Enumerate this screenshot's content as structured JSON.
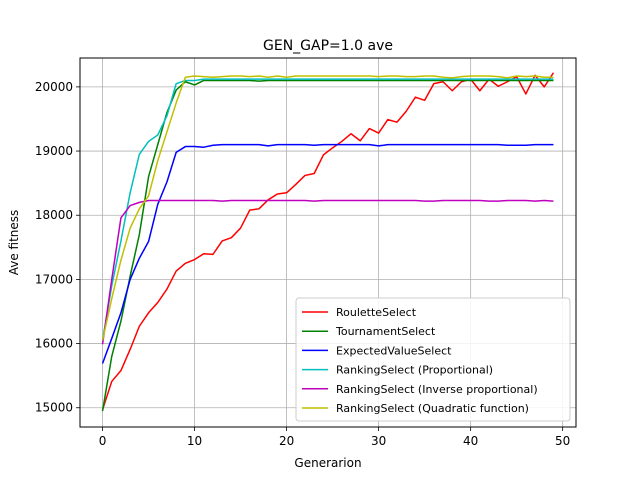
{
  "chart_data": {
    "type": "line",
    "title": "GEN_GAP=1.0 ave",
    "xlabel": "Generarion",
    "ylabel": "Ave fitness",
    "xlim": [
      -2.45,
      51.45
    ],
    "ylim": [
      14700,
      20450
    ],
    "xticks": [
      0,
      10,
      20,
      30,
      40,
      50
    ],
    "yticks": [
      15000,
      16000,
      17000,
      18000,
      19000,
      20000
    ],
    "grid": true,
    "legend_position": "lower-right",
    "series": [
      {
        "name": "RouletteSelect",
        "color": "#ff0000",
        "x": [
          0,
          1,
          2,
          3,
          4,
          5,
          6,
          7,
          8,
          9,
          10,
          11,
          12,
          13,
          14,
          15,
          16,
          17,
          18,
          19,
          20,
          21,
          22,
          23,
          24,
          25,
          26,
          27,
          28,
          29,
          30,
          31,
          32,
          33,
          34,
          35,
          36,
          37,
          38,
          39,
          40,
          41,
          42,
          43,
          44,
          45,
          46,
          47,
          48,
          49
        ],
        "values": [
          14970,
          15410,
          15580,
          15910,
          16270,
          16480,
          16640,
          16850,
          17130,
          17250,
          17310,
          17400,
          17390,
          17600,
          17650,
          17800,
          18080,
          18100,
          18240,
          18330,
          18350,
          18480,
          18620,
          18650,
          18940,
          19050,
          19150,
          19270,
          19160,
          19350,
          19280,
          19490,
          19450,
          19620,
          19840,
          19790,
          20050,
          20080,
          19940,
          20080,
          20120,
          19940,
          20120,
          20010,
          20080,
          20160,
          19890,
          20180,
          20000,
          20220
        ]
      },
      {
        "name": "TournamentSelect",
        "color": "#008000",
        "x": [
          0,
          1,
          2,
          3,
          4,
          5,
          6,
          7,
          8,
          9,
          10,
          11,
          12,
          13,
          14,
          15,
          16,
          17,
          18,
          19,
          20,
          21,
          22,
          23,
          24,
          25,
          26,
          27,
          28,
          29,
          30,
          31,
          32,
          33,
          34,
          35,
          36,
          37,
          38,
          39,
          40,
          41,
          42,
          43,
          44,
          45,
          46,
          47,
          48,
          49
        ],
        "values": [
          14950,
          15800,
          16350,
          17050,
          17700,
          18600,
          19100,
          19600,
          19950,
          20080,
          20030,
          20100,
          20100,
          20100,
          20100,
          20100,
          20100,
          20090,
          20100,
          20100,
          20100,
          20100,
          20100,
          20100,
          20100,
          20100,
          20100,
          20100,
          20100,
          20100,
          20100,
          20100,
          20100,
          20100,
          20100,
          20100,
          20100,
          20100,
          20100,
          20100,
          20100,
          20100,
          20100,
          20100,
          20100,
          20100,
          20100,
          20100,
          20100,
          20100
        ]
      },
      {
        "name": "ExpectedValueSelect",
        "color": "#0000ff",
        "x": [
          0,
          1,
          2,
          3,
          4,
          5,
          6,
          7,
          8,
          9,
          10,
          11,
          12,
          13,
          14,
          15,
          16,
          17,
          18,
          19,
          20,
          21,
          22,
          23,
          24,
          25,
          26,
          27,
          28,
          29,
          30,
          31,
          32,
          33,
          34,
          35,
          36,
          37,
          38,
          39,
          40,
          41,
          42,
          43,
          44,
          45,
          46,
          47,
          48,
          49
        ],
        "values": [
          15690,
          16080,
          16480,
          17000,
          17330,
          17590,
          18170,
          18520,
          18980,
          19070,
          19070,
          19060,
          19090,
          19100,
          19100,
          19100,
          19100,
          19100,
          19080,
          19100,
          19100,
          19100,
          19100,
          19090,
          19100,
          19100,
          19100,
          19100,
          19100,
          19100,
          19080,
          19100,
          19100,
          19100,
          19100,
          19100,
          19100,
          19100,
          19100,
          19100,
          19100,
          19100,
          19100,
          19100,
          19090,
          19090,
          19090,
          19100,
          19100,
          19100
        ]
      },
      {
        "name": "RankingSelect (Proportional)",
        "color": "#00bfbf",
        "x": [
          0,
          1,
          2,
          3,
          4,
          5,
          6,
          7,
          8,
          9,
          10,
          11,
          12,
          13,
          14,
          15,
          16,
          17,
          18,
          19,
          20,
          21,
          22,
          23,
          24,
          25,
          26,
          27,
          28,
          29,
          30,
          31,
          32,
          33,
          34,
          35,
          36,
          37,
          38,
          39,
          40,
          41,
          42,
          43,
          44,
          45,
          46,
          47,
          48,
          49
        ],
        "values": [
          16050,
          16900,
          17600,
          18350,
          18950,
          19150,
          19250,
          19550,
          20050,
          20100,
          20100,
          20120,
          20120,
          20120,
          20120,
          20120,
          20120,
          20120,
          20120,
          20120,
          20120,
          20120,
          20120,
          20120,
          20120,
          20120,
          20120,
          20120,
          20120,
          20120,
          20120,
          20120,
          20120,
          20120,
          20120,
          20120,
          20120,
          20120,
          20120,
          20120,
          20120,
          20120,
          20120,
          20120,
          20120,
          20120,
          20120,
          20120,
          20120,
          20120
        ]
      },
      {
        "name": "RankingSelect (Inverse proportional)",
        "color": "#bf00bf",
        "x": [
          0,
          1,
          2,
          3,
          4,
          5,
          6,
          7,
          8,
          9,
          10,
          11,
          12,
          13,
          14,
          15,
          16,
          17,
          18,
          19,
          20,
          21,
          22,
          23,
          24,
          25,
          26,
          27,
          28,
          29,
          30,
          31,
          32,
          33,
          34,
          35,
          36,
          37,
          38,
          39,
          40,
          41,
          42,
          43,
          44,
          45,
          46,
          47,
          48,
          49
        ],
        "values": [
          15990,
          17000,
          17960,
          18150,
          18200,
          18230,
          18230,
          18230,
          18230,
          18230,
          18230,
          18230,
          18230,
          18220,
          18230,
          18230,
          18230,
          18230,
          18230,
          18230,
          18230,
          18230,
          18230,
          18220,
          18230,
          18230,
          18230,
          18230,
          18230,
          18230,
          18230,
          18230,
          18230,
          18230,
          18230,
          18220,
          18220,
          18230,
          18230,
          18230,
          18230,
          18230,
          18220,
          18220,
          18230,
          18230,
          18230,
          18220,
          18230,
          18220
        ]
      },
      {
        "name": "RankingSelect (Quadratic function)",
        "color": "#bfbf00",
        "x": [
          0,
          1,
          2,
          3,
          4,
          5,
          6,
          7,
          8,
          9,
          10,
          11,
          12,
          13,
          14,
          15,
          16,
          17,
          18,
          19,
          20,
          21,
          22,
          23,
          24,
          25,
          26,
          27,
          28,
          29,
          30,
          31,
          32,
          33,
          34,
          35,
          36,
          37,
          38,
          39,
          40,
          41,
          42,
          43,
          44,
          45,
          46,
          47,
          48,
          49
        ],
        "values": [
          16050,
          16700,
          17300,
          17800,
          18100,
          18300,
          18850,
          19300,
          19750,
          20150,
          20170,
          20160,
          20150,
          20160,
          20170,
          20170,
          20160,
          20170,
          20150,
          20170,
          20150,
          20170,
          20170,
          20170,
          20170,
          20170,
          20170,
          20170,
          20170,
          20170,
          20160,
          20170,
          20170,
          20160,
          20160,
          20170,
          20170,
          20150,
          20140,
          20160,
          20170,
          20170,
          20170,
          20160,
          20140,
          20170,
          20160,
          20170,
          20150,
          20150
        ]
      }
    ]
  }
}
